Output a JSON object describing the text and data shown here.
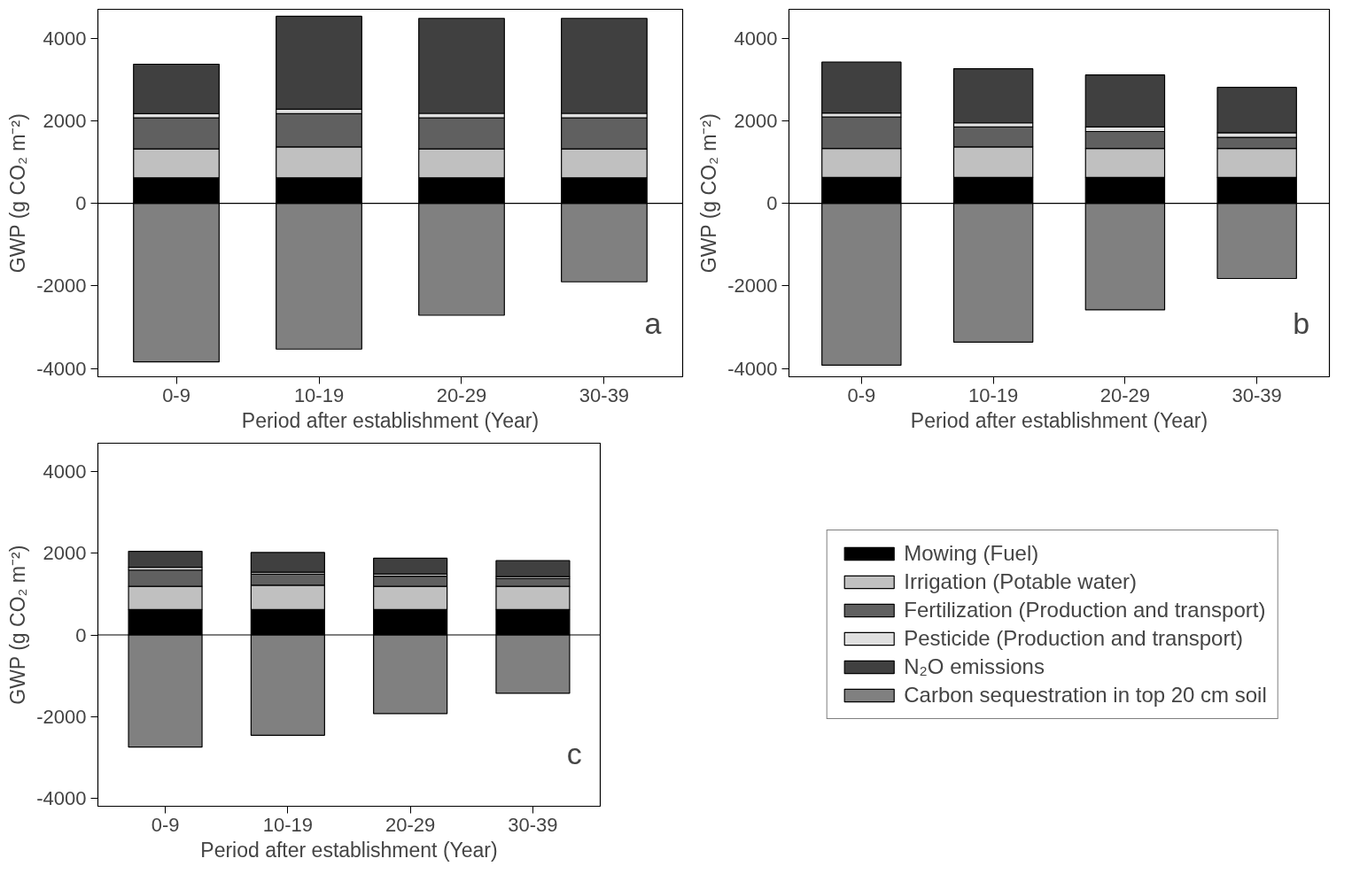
{
  "chart_data": [
    {
      "type": "bar",
      "stacked": true,
      "categories": [
        "0-9",
        "10-19",
        "20-29",
        "30-39"
      ],
      "xlabel": "Period after establishment (Year)",
      "ylabel": "GWP (g CO₂ m⁻²)",
      "ylim": [
        -4200,
        4700
      ],
      "yticks": [
        -4000,
        -2000,
        0,
        2000,
        4000
      ],
      "grid": false,
      "legend": false,
      "annotations": [
        "a"
      ],
      "ref_lines": [
        {
          "axis": "y",
          "value": 0,
          "color": "#000000"
        }
      ],
      "series": [
        {
          "color": "#000000",
          "values": [
            620,
            620,
            620,
            620
          ]
        },
        {
          "color": "#c0c0c0",
          "values": [
            700,
            750,
            700,
            700
          ]
        },
        {
          "color": "#606060",
          "values": [
            750,
            800,
            750,
            750
          ]
        },
        {
          "color": "#e0e0e0",
          "values": [
            100,
            110,
            110,
            110
          ]
        },
        {
          "color": "#404040",
          "values": [
            1200,
            2250,
            2300,
            2300
          ]
        },
        {
          "color": "#808080",
          "values": [
            -3840,
            -3530,
            -2710,
            -1900
          ]
        }
      ]
    },
    {
      "type": "bar",
      "stacked": true,
      "categories": [
        "0-9",
        "10-19",
        "20-29",
        "30-39"
      ],
      "xlabel": "Period after establishment (Year)",
      "ylabel": "GWP (g CO₂ m⁻²)",
      "ylim": [
        -4200,
        4700
      ],
      "yticks": [
        -4000,
        -2000,
        0,
        2000,
        4000
      ],
      "grid": false,
      "legend": false,
      "annotations": [
        "b"
      ],
      "ref_lines": [
        {
          "axis": "y",
          "value": 0,
          "color": "#000000"
        }
      ],
      "series": [
        {
          "color": "#000000",
          "values": [
            630,
            630,
            630,
            630
          ]
        },
        {
          "color": "#c0c0c0",
          "values": [
            700,
            740,
            700,
            700
          ]
        },
        {
          "color": "#606060",
          "values": [
            760,
            480,
            410,
            270
          ]
        },
        {
          "color": "#e0e0e0",
          "values": [
            100,
            100,
            110,
            110
          ]
        },
        {
          "color": "#404040",
          "values": [
            1230,
            1310,
            1260,
            1100
          ]
        },
        {
          "color": "#808080",
          "values": [
            -3920,
            -3360,
            -2580,
            -1820
          ]
        }
      ]
    },
    {
      "type": "bar",
      "stacked": true,
      "categories": [
        "0-9",
        "10-19",
        "20-29",
        "30-39"
      ],
      "xlabel": "Period after establishment (Year)",
      "ylabel": "GWP (g CO₂ m⁻²)",
      "ylim": [
        -4200,
        4700
      ],
      "yticks": [
        -4000,
        -2000,
        0,
        2000,
        4000
      ],
      "grid": false,
      "legend": "right",
      "annotations": [
        "c"
      ],
      "ref_lines": [
        {
          "axis": "y",
          "value": 0,
          "color": "#000000"
        }
      ],
      "series": [
        {
          "name": "Mowing (Fuel)",
          "color": "#000000",
          "values": [
            620,
            620,
            620,
            620
          ]
        },
        {
          "name": "Irrigation (Potable water)",
          "color": "#c0c0c0",
          "values": [
            570,
            600,
            570,
            570
          ]
        },
        {
          "name": "Fertilization (Production and transport)",
          "color": "#606060",
          "values": [
            400,
            270,
            250,
            190
          ]
        },
        {
          "name": "Pesticide (Production and transport)",
          "color": "#e0e0e0",
          "values": [
            70,
            50,
            50,
            50
          ]
        },
        {
          "name": "N₂O emissions",
          "color": "#404040",
          "values": [
            390,
            480,
            390,
            390
          ]
        },
        {
          "name": "Carbon sequestration in top 20 cm soil",
          "color": "#808080",
          "values": [
            -2750,
            -2460,
            -1930,
            -1430
          ]
        }
      ]
    }
  ]
}
